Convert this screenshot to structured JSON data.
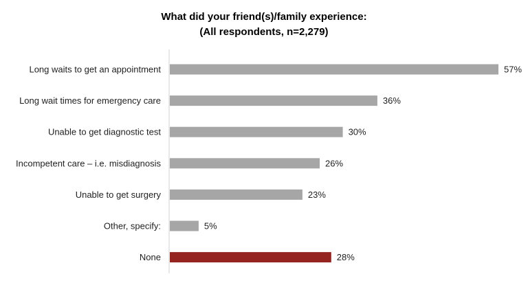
{
  "chart_data": {
    "type": "bar",
    "orientation": "horizontal",
    "title": "What did your friend(s)/family experience:",
    "subtitle": "(All respondents, n=2,279)",
    "categories": [
      "Long waits to get an appointment",
      "Long wait times for emergency care",
      "Unable to get diagnostic test",
      "Incompetent care – i.e. misdiagnosis",
      "Unable to get surgery",
      "Other, specify:",
      "None"
    ],
    "values": [
      57,
      36,
      30,
      26,
      23,
      5,
      28
    ],
    "data_labels": [
      "57%",
      "36%",
      "30%",
      "26%",
      "23%",
      "5%",
      "28%"
    ],
    "unit": "%",
    "xlim": [
      0,
      57
    ],
    "grid": false,
    "colors": {
      "default": "#a6a6a6",
      "highlight": "#952421"
    },
    "highlight_category": "None"
  }
}
